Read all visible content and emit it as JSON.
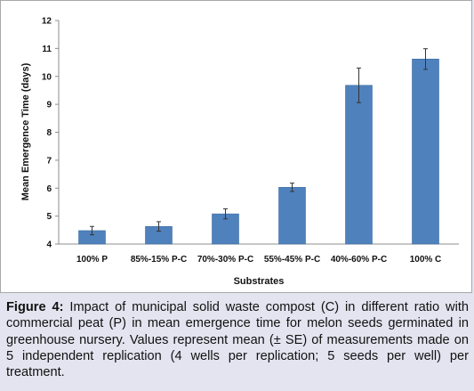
{
  "chart_data": {
    "type": "bar",
    "xlabel": "Substrates",
    "ylabel": "Mean Emergence  Time (days)",
    "ylim": [
      4,
      12
    ],
    "yticks": [
      4,
      5,
      6,
      7,
      8,
      9,
      10,
      11,
      12
    ],
    "grid": false,
    "legend": "none",
    "bar_color": "#4f81bd",
    "error_bar_color": "#333333",
    "categories": [
      "100% P",
      "85%-15% P-C",
      "70%-30% P-C",
      "55%-45% P-C",
      "40%-60% P-C",
      "100% C"
    ],
    "series": [
      {
        "values": [
          4.48,
          4.63,
          5.08,
          6.03,
          9.68,
          10.62
        ],
        "errors": [
          0.15,
          0.17,
          0.18,
          0.15,
          0.62,
          0.37
        ]
      }
    ]
  },
  "caption": {
    "label": "Figure 4:",
    "text": " Impact of municipal solid waste compost (C) in different ratio with commercial peat (P) in mean emergence time for melon seeds germinated in greenhouse nursery. Values represent mean (± SE) of measurements made on 5 independent replication (4 wells per replication; 5 seeds per well) per treatment."
  }
}
